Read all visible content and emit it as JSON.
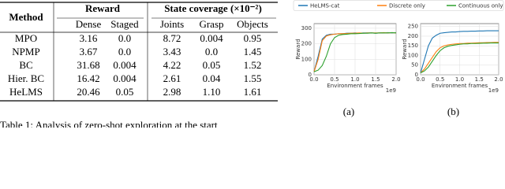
{
  "table": {
    "header": {
      "method": "Method",
      "group1": "Reward",
      "group2": "State coverage (×10⁻²)",
      "columns": [
        "Dense",
        "Staged",
        "Joints",
        "Grasp",
        "Objects"
      ]
    },
    "rows": [
      [
        "MPO",
        "3.16",
        "0.0",
        "8.72",
        "0.004",
        "0.95"
      ],
      [
        "NPMP",
        "3.67",
        "0.0",
        "3.43",
        "0.0",
        "1.45"
      ],
      [
        "BC",
        "31.68",
        "0.004",
        "4.22",
        "0.05",
        "1.52"
      ],
      [
        "Hier. BC",
        "16.42",
        "0.004",
        "2.61",
        "0.04",
        "1.55"
      ],
      [
        "HeLMS",
        "20.46",
        "0.05",
        "2.98",
        "1.10",
        "1.61"
      ]
    ],
    "caption": "Table 1: Analysis of zero-shot exploration at the start"
  },
  "chart_data": [
    {
      "type": "line",
      "subcaption": "(a)",
      "xlabel": "Environment frames",
      "x_offset_label": "1e9",
      "ylabel": "Reward",
      "x": [
        0,
        0.1,
        0.2,
        0.3,
        0.4,
        0.5,
        0.6,
        0.7,
        0.8,
        0.9,
        1.0,
        1.1,
        1.2,
        1.3,
        1.4,
        1.5,
        1.6,
        1.7,
        1.8,
        1.9,
        2.0
      ],
      "xlim": [
        0,
        2.0
      ],
      "xticks": [
        {
          "value": 0,
          "label": "0.0"
        },
        {
          "value": 0.5,
          "label": "0.5"
        },
        {
          "value": 1,
          "label": "1.0"
        },
        {
          "value": 1.5,
          "label": "1.5"
        },
        {
          "value": 2,
          "label": "2.0"
        }
      ],
      "ylim": [
        0,
        330
      ],
      "yticks": [
        0,
        100,
        200,
        300
      ],
      "grid": true,
      "series": [
        {
          "name": "HeLMS-cat",
          "color": "#1f77b4",
          "values": [
            20,
            120,
            230,
            255,
            262,
            262,
            265,
            265,
            268,
            268,
            270,
            268,
            270,
            270,
            270,
            268,
            270,
            270,
            272,
            270,
            272
          ]
        },
        {
          "name": "Discrete only",
          "color": "#ff7f0e",
          "values": [
            20,
            100,
            220,
            250,
            258,
            262,
            265,
            265,
            266,
            268,
            268,
            270,
            268,
            270,
            270,
            270,
            270,
            272,
            270,
            272,
            270
          ]
        },
        {
          "name": "Continuous only",
          "color": "#2ca02c",
          "values": [
            20,
            30,
            60,
            120,
            200,
            240,
            255,
            260,
            262,
            265,
            265,
            266,
            268,
            268,
            270,
            268,
            270,
            270,
            270,
            272,
            270
          ]
        }
      ]
    },
    {
      "type": "line",
      "subcaption": "(b)",
      "xlabel": "Environment frames",
      "x_offset_label": "1e9",
      "ylabel": "Reward",
      "x": [
        0,
        0.1,
        0.2,
        0.3,
        0.4,
        0.5,
        0.6,
        0.7,
        0.8,
        0.9,
        1.0,
        1.1,
        1.2,
        1.3,
        1.4,
        1.5,
        1.6,
        1.7,
        1.8,
        1.9,
        2.0
      ],
      "xlim": [
        0,
        2.0
      ],
      "xticks": [
        {
          "value": 0,
          "label": "0.0"
        },
        {
          "value": 0.5,
          "label": "0.5"
        },
        {
          "value": 1,
          "label": "1.0"
        },
        {
          "value": 1.5,
          "label": "1.5"
        },
        {
          "value": 2,
          "label": "2.0"
        }
      ],
      "ylim": [
        0,
        265
      ],
      "yticks": [
        0,
        50,
        100,
        150,
        200,
        250
      ],
      "grid": true,
      "series": [
        {
          "name": "HeLMS-cat",
          "color": "#1f77b4",
          "values": [
            10,
            80,
            150,
            190,
            205,
            215,
            218,
            220,
            222,
            222,
            224,
            225,
            225,
            226,
            226,
            227,
            227,
            228,
            228,
            228,
            228
          ]
        },
        {
          "name": "Discrete only",
          "color": "#ff7f0e",
          "values": [
            10,
            30,
            60,
            90,
            120,
            140,
            150,
            155,
            158,
            160,
            162,
            162,
            164,
            164,
            165,
            166,
            166,
            167,
            167,
            168,
            168
          ]
        },
        {
          "name": "Continuous only",
          "color": "#2ca02c",
          "values": [
            10,
            20,
            40,
            70,
            100,
            125,
            140,
            148,
            152,
            155,
            158,
            160,
            160,
            162,
            162,
            163,
            164,
            164,
            165,
            165,
            165
          ]
        }
      ]
    }
  ]
}
